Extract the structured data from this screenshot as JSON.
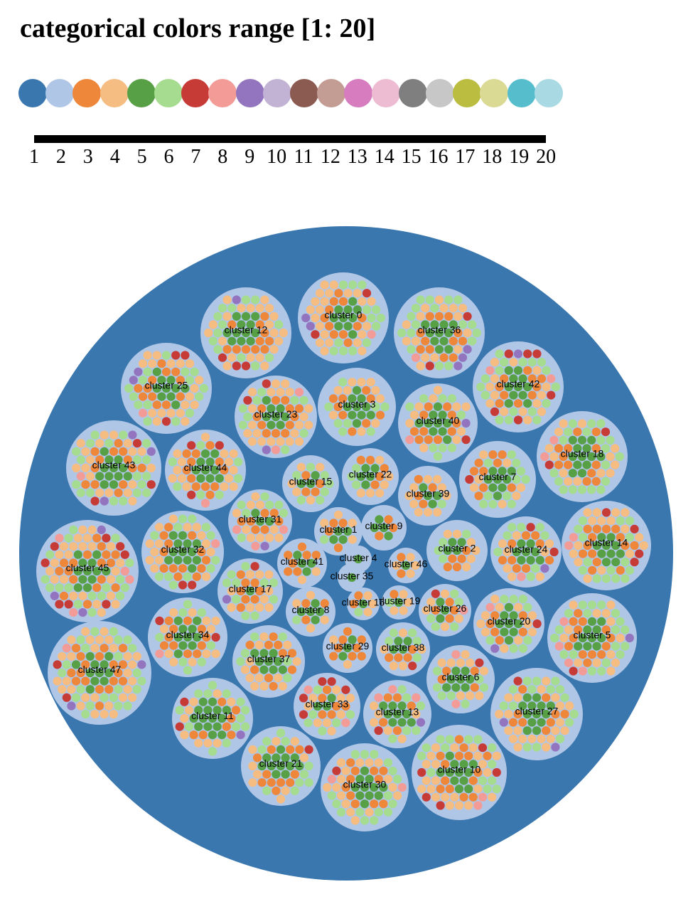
{
  "header": {
    "title": "categorical colors range [1: 20]"
  },
  "palette": {
    "colors": [
      "#3a77ae",
      "#b0c6e6",
      "#ee873a",
      "#f6bd83",
      "#57a046",
      "#a6dc8f",
      "#c73b36",
      "#f39c97",
      "#9375bf",
      "#c2b3d4",
      "#8b5a50",
      "#c39c93",
      "#d67cbf",
      "#edbcd3",
      "#7f7f7f",
      "#c7c7c7",
      "#bbbd41",
      "#dada95",
      "#55bdcc",
      "#a9dae3"
    ],
    "tick_labels": [
      "1",
      "2",
      "3",
      "4",
      "5",
      "6",
      "7",
      "8",
      "9",
      "10",
      "11",
      "12",
      "13",
      "14",
      "15",
      "16",
      "17",
      "18",
      "19",
      "20"
    ]
  },
  "pack": {
    "clusters": [
      "cluster 0",
      "cluster 12",
      "cluster 36",
      "cluster 25",
      "cluster 3",
      "cluster 23",
      "cluster 42",
      "cluster 40",
      "cluster 43",
      "cluster 44",
      "cluster 18",
      "cluster 15",
      "cluster 22",
      "cluster 7",
      "cluster 39",
      "cluster 31",
      "cluster 1",
      "cluster 9",
      "cluster 45",
      "cluster 32",
      "cluster 2",
      "cluster 24",
      "cluster 14",
      "cluster 41",
      "cluster 4",
      "cluster 46",
      "cluster 35",
      "cluster 17",
      "cluster 19",
      "cluster 8",
      "cluster 16",
      "cluster 26",
      "cluster 34",
      "cluster 20",
      "cluster 5",
      "cluster 47",
      "cluster 29",
      "cluster 38",
      "cluster 37",
      "cluster 6",
      "cluster 33",
      "cluster 13",
      "cluster 11",
      "cluster 27",
      "cluster 21",
      "cluster 30",
      "cluster 10"
    ]
  }
}
